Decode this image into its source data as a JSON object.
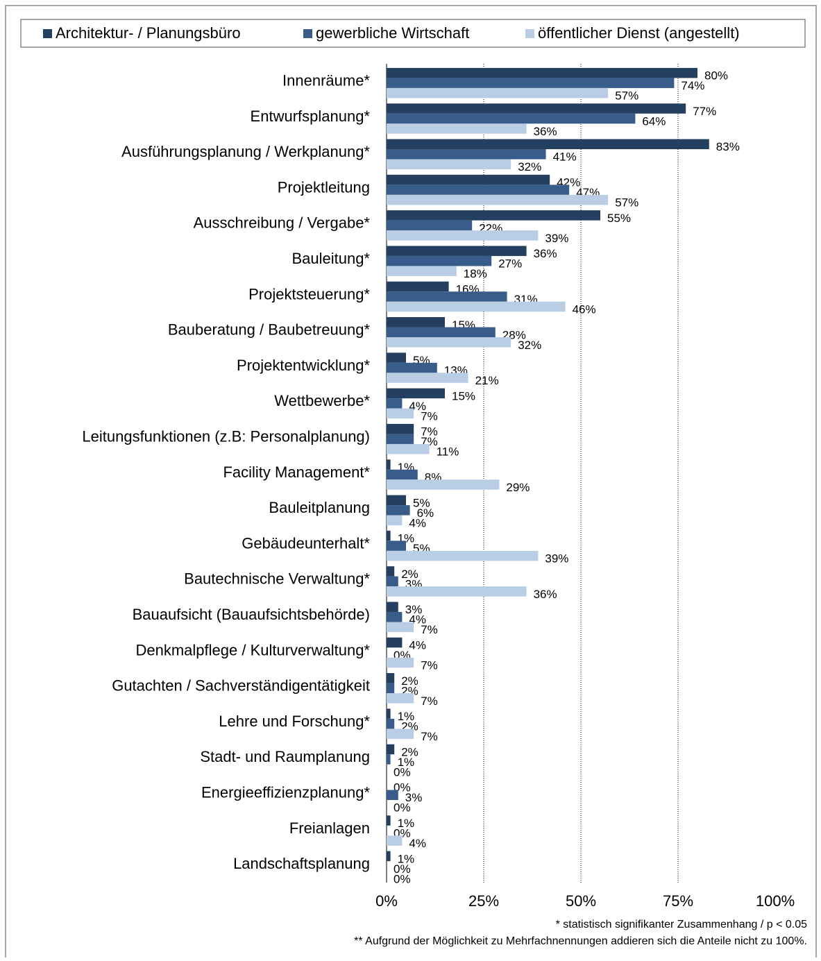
{
  "chart_data": {
    "type": "hbar",
    "categories": [
      "Innenräume*",
      "Entwurfsplanung*",
      "Ausführungsplanung / Werkplanung*",
      "Projektleitung",
      "Ausschreibung / Vergabe*",
      "Bauleitung*",
      "Projektsteuerung*",
      "Bauberatung / Baubetreuung*",
      "Projektentwicklung*",
      "Wettbewerbe*",
      "Leitungsfunktionen (z.B: Personalplanung)",
      "Facility Management*",
      "Bauleitplanung",
      "Gebäudeunterhalt*",
      "Bautechnische Verwaltung*",
      "Bauaufsicht (Bauaufsichtsbehörde)",
      "Denkmalpflege / Kulturverwaltung*",
      "Gutachten / Sachverständigentätigkeit",
      "Lehre und Forschung*",
      "Stadt- und Raumplanung",
      "Energieeffizienzplanung*",
      "Freianlagen",
      "Landschaftsplanung"
    ],
    "series": [
      {
        "name": "Architektur- / Planungsbüro",
        "color": "#243f60",
        "values": [
          80,
          77,
          83,
          42,
          55,
          36,
          16,
          15,
          5,
          15,
          7,
          1,
          5,
          1,
          2,
          3,
          4,
          2,
          1,
          2,
          0,
          1,
          1
        ],
        "value_labels": [
          "80%",
          "77%",
          "83%",
          "42%",
          "55%",
          "36%",
          "16%",
          "15%",
          "5%",
          "15%",
          "7%",
          "1%",
          "5%",
          "1%",
          "2%",
          "3%",
          "4%",
          "2%",
          "1%",
          "2%",
          "0%",
          "1%",
          "1%"
        ]
      },
      {
        "name": "gewerbliche Wirtschaft",
        "color": "#385d8a",
        "values": [
          74,
          64,
          41,
          47,
          22,
          27,
          31,
          28,
          13,
          4,
          7,
          8,
          6,
          5,
          3,
          4,
          0,
          2,
          2,
          1,
          3,
          0,
          0
        ],
        "value_labels": [
          "74%",
          "64%",
          "41%",
          "47%",
          "22%",
          "27%",
          "31%",
          "28%",
          "13%",
          "4%",
          "7%",
          "8%",
          "6%",
          "5%",
          "3%",
          "4%",
          "0%",
          "2%",
          "2%",
          "1%",
          "3%",
          "0%",
          "0%"
        ]
      },
      {
        "name": "öffentlicher Dienst (angestellt)",
        "color": "#b9cde5",
        "values": [
          57,
          36,
          32,
          57,
          39,
          18,
          46,
          32,
          21,
          7,
          11,
          29,
          4,
          39,
          36,
          7,
          7,
          7,
          7,
          0,
          0,
          4,
          0
        ],
        "value_labels": [
          "57%",
          "36%",
          "32%",
          "57%",
          "39%",
          "18%",
          "46%",
          "32%",
          "21%",
          "7%",
          "11%",
          "29%",
          "4%",
          "39%",
          "36%",
          "7%",
          "7%",
          "7%",
          "7%",
          "0%",
          "0%",
          "4%",
          "0%"
        ]
      }
    ],
    "xlim": [
      0,
      100
    ],
    "xticks": [
      {
        "value": 0,
        "label": "0%"
      },
      {
        "value": 25,
        "label": "25%"
      },
      {
        "value": 50,
        "label": "50%"
      },
      {
        "value": 75,
        "label": "75%"
      },
      {
        "value": 100,
        "label": "100%"
      }
    ],
    "grid": true,
    "legend": "top",
    "notes": [
      "* statistisch signifikanter Zusammenhang / p < 0.05",
      "** Aufgrund der Möglichkeit zu Mehrfachnennungen addieren sich die Anteile nicht zu 100%."
    ]
  }
}
